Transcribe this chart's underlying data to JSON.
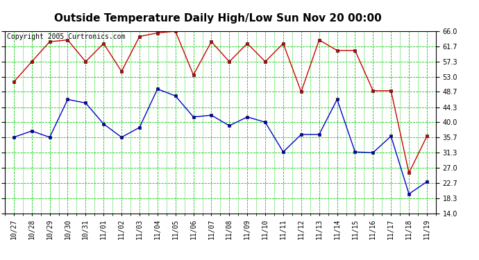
{
  "title": "Outside Temperature Daily High/Low Sun Nov 20 00:00",
  "copyright": "Copyright 2005 Curtronics.com",
  "x_labels": [
    "10/27",
    "10/28",
    "10/29",
    "10/30",
    "10/31",
    "11/01",
    "11/02",
    "11/03",
    "11/04",
    "11/05",
    "11/06",
    "11/07",
    "11/08",
    "11/09",
    "11/10",
    "11/11",
    "11/12",
    "11/13",
    "11/14",
    "11/15",
    "11/16",
    "11/17",
    "11/18",
    "11/19"
  ],
  "high_temps": [
    51.5,
    57.3,
    63.0,
    63.5,
    57.3,
    62.5,
    54.5,
    64.5,
    65.5,
    66.0,
    53.5,
    63.0,
    57.3,
    62.5,
    57.3,
    62.5,
    48.7,
    63.5,
    60.5,
    60.5,
    49.0,
    49.0,
    25.5,
    36.0
  ],
  "low_temps": [
    35.7,
    37.5,
    35.7,
    46.5,
    45.5,
    39.5,
    35.7,
    38.5,
    49.5,
    47.5,
    41.5,
    42.0,
    39.0,
    41.5,
    40.0,
    31.5,
    36.5,
    36.5,
    46.5,
    31.5,
    31.3,
    36.0,
    19.5,
    23.0
  ],
  "ylim": [
    14.0,
    66.0
  ],
  "yticks": [
    14.0,
    18.3,
    22.7,
    27.0,
    31.3,
    35.7,
    40.0,
    44.3,
    48.7,
    53.0,
    57.3,
    61.7,
    66.0
  ],
  "high_color": "#cc0000",
  "low_color": "#0000cc",
  "grid_major_color": "#00cc00",
  "grid_minor_color": "#00cc00",
  "bg_color": "#ffffff",
  "title_fontsize": 11,
  "copyright_fontsize": 7,
  "tick_fontsize": 7
}
